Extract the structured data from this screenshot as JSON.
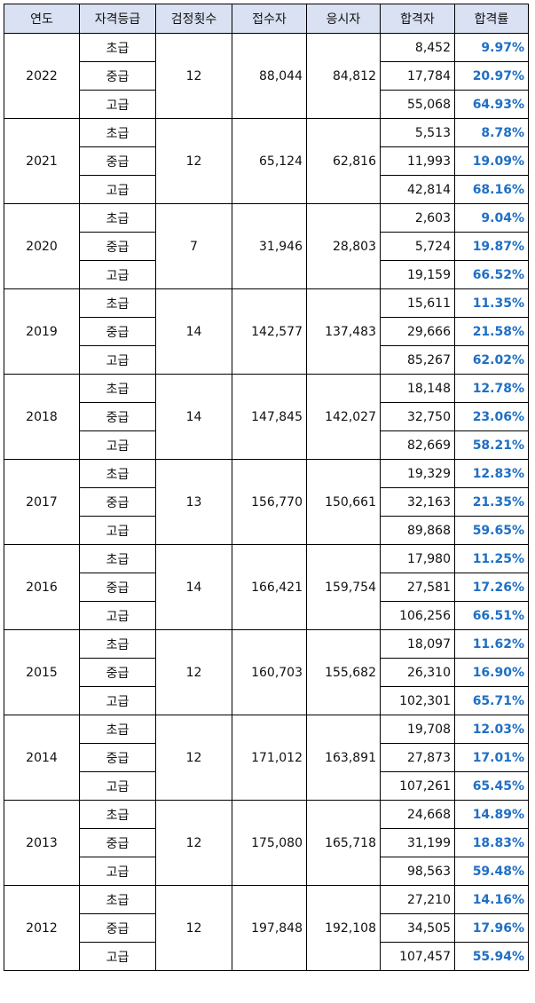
{
  "header": {
    "year": "연도",
    "grade": "자격등급",
    "exam_count": "검정횟수",
    "registrants": "접수자",
    "examinees": "응시자",
    "passers": "합격자",
    "pass_rate": "합격률"
  },
  "colors": {
    "header_bg": "#d9e1f2",
    "rate_text": "#1f6fc5"
  },
  "rows": [
    {
      "year": "2022",
      "exam_count": "12",
      "registrants": "88,044",
      "examinees": "84,812",
      "grades": [
        {
          "grade": "초급",
          "passers": "8,452",
          "rate": "9.97%"
        },
        {
          "grade": "중급",
          "passers": "17,784",
          "rate": "20.97%"
        },
        {
          "grade": "고급",
          "passers": "55,068",
          "rate": "64.93%"
        }
      ]
    },
    {
      "year": "2021",
      "exam_count": "12",
      "registrants": "65,124",
      "examinees": "62,816",
      "grades": [
        {
          "grade": "초급",
          "passers": "5,513",
          "rate": "8.78%"
        },
        {
          "grade": "중급",
          "passers": "11,993",
          "rate": "19.09%"
        },
        {
          "grade": "고급",
          "passers": "42,814",
          "rate": "68.16%"
        }
      ]
    },
    {
      "year": "2020",
      "exam_count": "7",
      "registrants": "31,946",
      "examinees": "28,803",
      "grades": [
        {
          "grade": "초급",
          "passers": "2,603",
          "rate": "9.04%"
        },
        {
          "grade": "중급",
          "passers": "5,724",
          "rate": "19.87%"
        },
        {
          "grade": "고급",
          "passers": "19,159",
          "rate": "66.52%"
        }
      ]
    },
    {
      "year": "2019",
      "exam_count": "14",
      "registrants": "142,577",
      "examinees": "137,483",
      "grades": [
        {
          "grade": "초급",
          "passers": "15,611",
          "rate": "11.35%"
        },
        {
          "grade": "중급",
          "passers": "29,666",
          "rate": "21.58%"
        },
        {
          "grade": "고급",
          "passers": "85,267",
          "rate": "62.02%"
        }
      ]
    },
    {
      "year": "2018",
      "exam_count": "14",
      "registrants": "147,845",
      "examinees": "142,027",
      "grades": [
        {
          "grade": "초급",
          "passers": "18,148",
          "rate": "12.78%"
        },
        {
          "grade": "중급",
          "passers": "32,750",
          "rate": "23.06%"
        },
        {
          "grade": "고급",
          "passers": "82,669",
          "rate": "58.21%"
        }
      ]
    },
    {
      "year": "2017",
      "exam_count": "13",
      "registrants": "156,770",
      "examinees": "150,661",
      "grades": [
        {
          "grade": "초급",
          "passers": "19,329",
          "rate": "12.83%"
        },
        {
          "grade": "중급",
          "passers": "32,163",
          "rate": "21.35%"
        },
        {
          "grade": "고급",
          "passers": "89,868",
          "rate": "59.65%"
        }
      ]
    },
    {
      "year": "2016",
      "exam_count": "14",
      "registrants": "166,421",
      "examinees": "159,754",
      "grades": [
        {
          "grade": "초급",
          "passers": "17,980",
          "rate": "11.25%"
        },
        {
          "grade": "중급",
          "passers": "27,581",
          "rate": "17.26%"
        },
        {
          "grade": "고급",
          "passers": "106,256",
          "rate": "66.51%"
        }
      ]
    },
    {
      "year": "2015",
      "exam_count": "12",
      "registrants": "160,703",
      "examinees": "155,682",
      "grades": [
        {
          "grade": "초급",
          "passers": "18,097",
          "rate": "11.62%"
        },
        {
          "grade": "중급",
          "passers": "26,310",
          "rate": "16.90%"
        },
        {
          "grade": "고급",
          "passers": "102,301",
          "rate": "65.71%"
        }
      ]
    },
    {
      "year": "2014",
      "exam_count": "12",
      "registrants": "171,012",
      "examinees": "163,891",
      "grades": [
        {
          "grade": "초급",
          "passers": "19,708",
          "rate": "12.03%"
        },
        {
          "grade": "중급",
          "passers": "27,873",
          "rate": "17.01%"
        },
        {
          "grade": "고급",
          "passers": "107,261",
          "rate": "65.45%"
        }
      ]
    },
    {
      "year": "2013",
      "exam_count": "12",
      "registrants": "175,080",
      "examinees": "165,718",
      "grades": [
        {
          "grade": "초급",
          "passers": "24,668",
          "rate": "14.89%"
        },
        {
          "grade": "중급",
          "passers": "31,199",
          "rate": "18.83%"
        },
        {
          "grade": "고급",
          "passers": "98,563",
          "rate": "59.48%"
        }
      ]
    },
    {
      "year": "2012",
      "exam_count": "12",
      "registrants": "197,848",
      "examinees": "192,108",
      "grades": [
        {
          "grade": "초급",
          "passers": "27,210",
          "rate": "14.16%"
        },
        {
          "grade": "중급",
          "passers": "34,505",
          "rate": "17.96%"
        },
        {
          "grade": "고급",
          "passers": "107,457",
          "rate": "55.94%"
        }
      ]
    }
  ]
}
